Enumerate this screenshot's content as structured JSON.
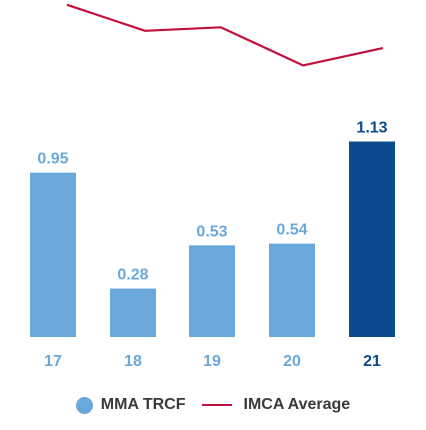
{
  "chart_data": {
    "type": "bar",
    "categories": [
      "17",
      "18",
      "19",
      "20",
      "21"
    ],
    "series": [
      {
        "name": "MMA TRCF",
        "type": "bar",
        "values": [
          0.95,
          0.28,
          0.53,
          0.54,
          1.13
        ],
        "color": "#6aa8dc",
        "highlight_color": "#0b4a8c",
        "highlight_index": 4
      },
      {
        "name": "IMCA Average",
        "type": "line",
        "values": [
          1.92,
          1.77,
          1.79,
          1.57,
          1.67
        ],
        "color": "#c0123c"
      }
    ],
    "value_labels": [
      "0.95",
      "0.28",
      "0.53",
      "0.54",
      "1.13"
    ],
    "ylim": [
      0,
      2.0
    ],
    "grid": false,
    "legend_position": "bottom-center",
    "category_label_color": "#6aa8dc",
    "highlight_label_color": "#0b4a8c"
  },
  "legend": {
    "items": [
      {
        "label": "MMA TRCF",
        "marker": "dot",
        "color": "#6aa8dc"
      },
      {
        "label": "IMCA Average",
        "marker": "line",
        "color": "#c0123c"
      }
    ]
  }
}
